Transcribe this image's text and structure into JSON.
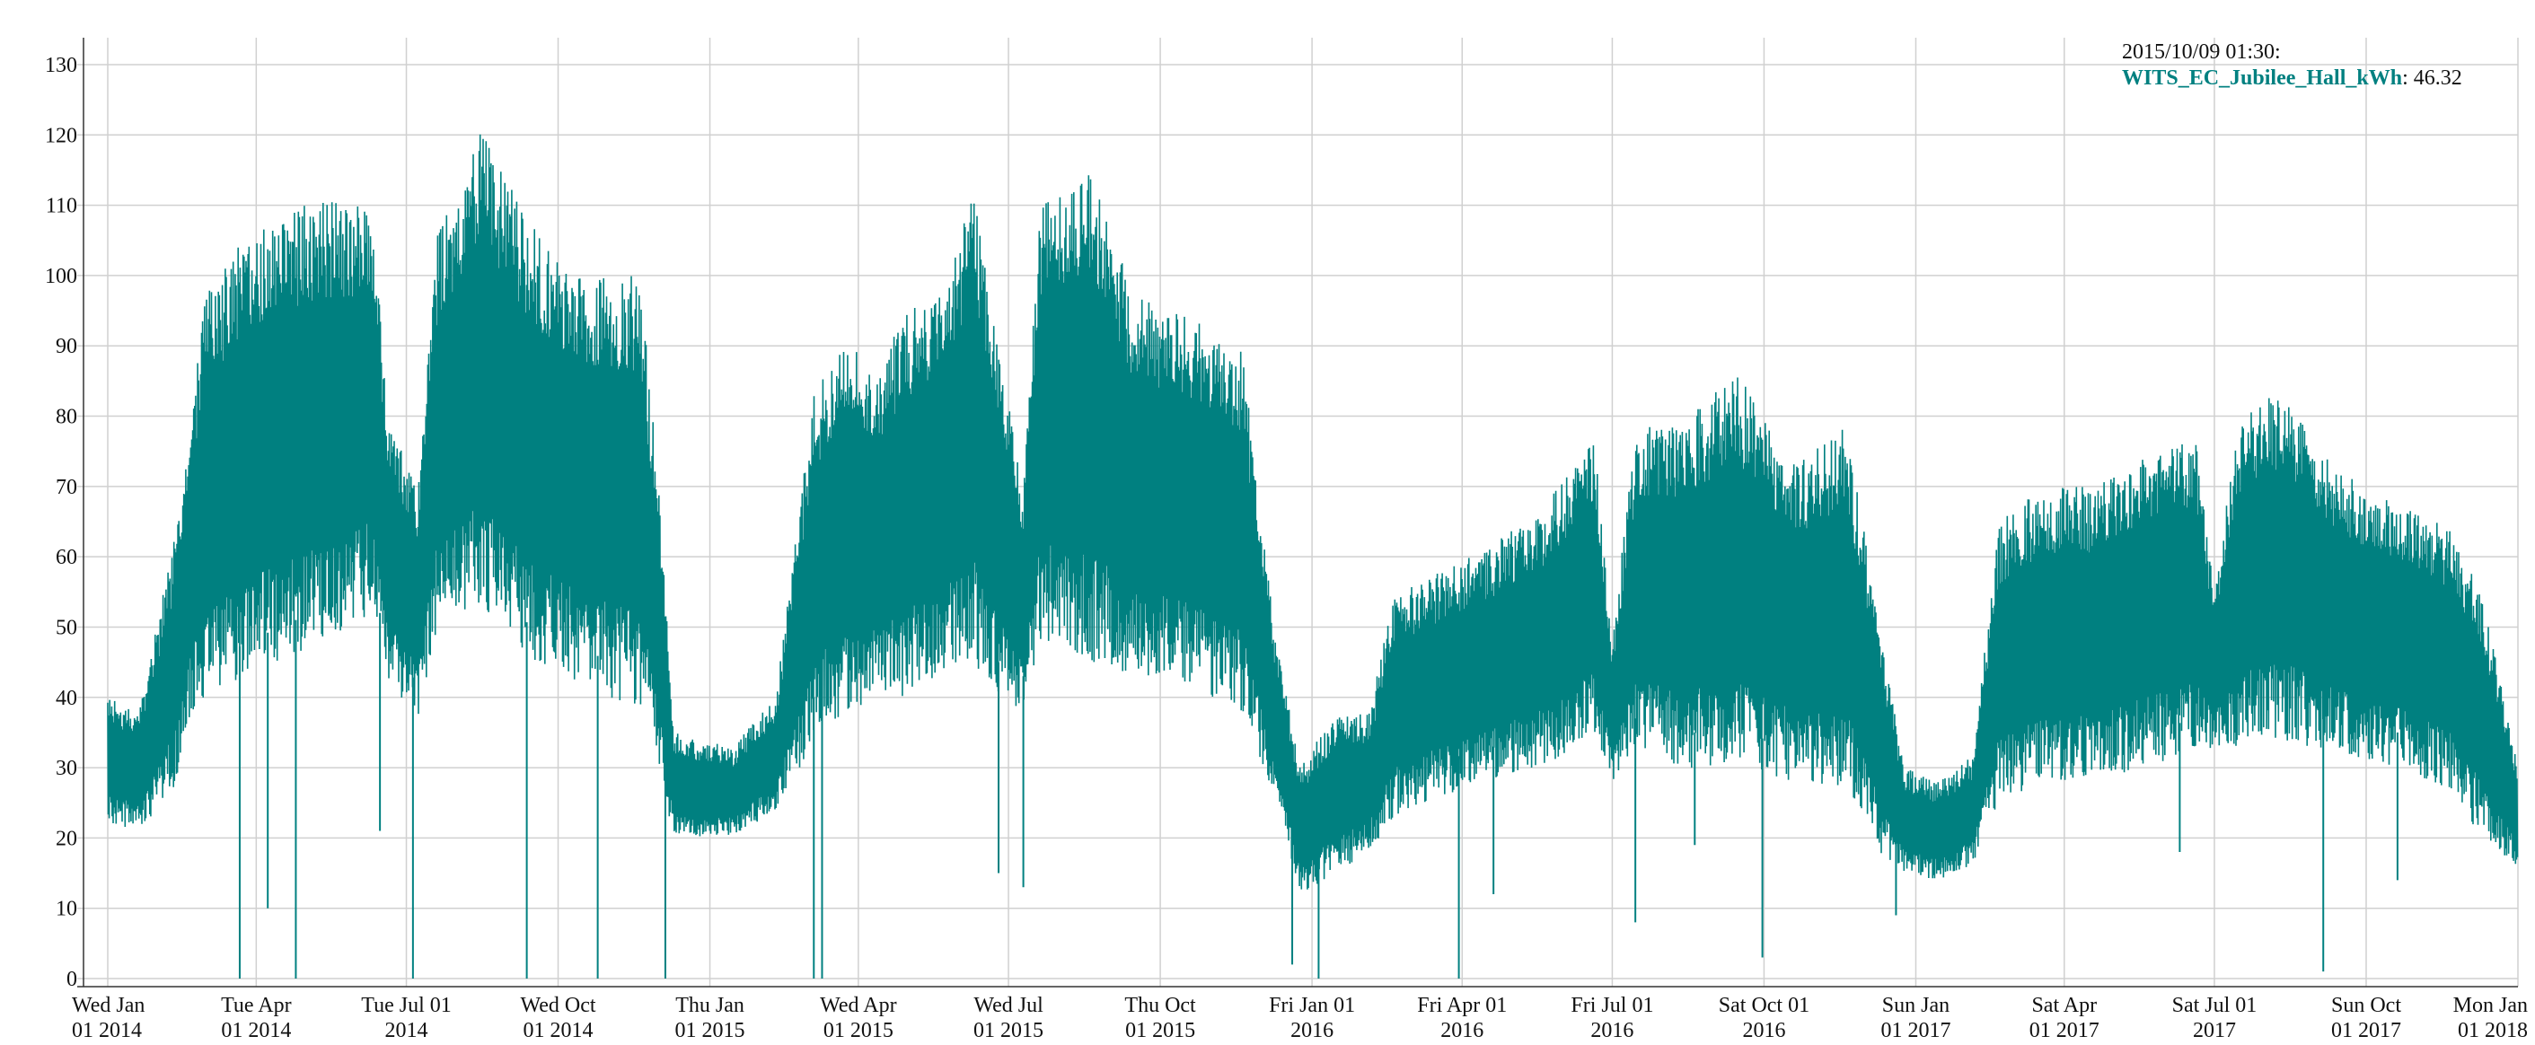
{
  "chart_data": {
    "type": "line",
    "color": "#008080",
    "ylim": [
      0,
      130
    ],
    "yticks": [
      0,
      10,
      20,
      30,
      40,
      50,
      60,
      70,
      80,
      90,
      100,
      110,
      120,
      130
    ],
    "xlim": [
      "2014-01-01",
      "2018-01-01"
    ],
    "xticks": [
      {
        "date": "2014-01-01",
        "line1": "Wed Jan",
        "line2": "01 2014"
      },
      {
        "date": "2014-04-01",
        "line1": "Tue Apr",
        "line2": "01 2014"
      },
      {
        "date": "2014-07-01",
        "line1": "Tue Jul 01",
        "line2": "2014"
      },
      {
        "date": "2014-10-01",
        "line1": "Wed Oct",
        "line2": "01 2014"
      },
      {
        "date": "2015-01-01",
        "line1": "Thu Jan",
        "line2": "01 2015"
      },
      {
        "date": "2015-04-01",
        "line1": "Wed Apr",
        "line2": "01 2015"
      },
      {
        "date": "2015-07-01",
        "line1": "Wed Jul",
        "line2": "01 2015"
      },
      {
        "date": "2015-10-01",
        "line1": "Thu Oct",
        "line2": "01 2015"
      },
      {
        "date": "2016-01-01",
        "line1": "Fri Jan 01",
        "line2": "2016"
      },
      {
        "date": "2016-04-01",
        "line1": "Fri Apr 01",
        "line2": "2016"
      },
      {
        "date": "2016-07-01",
        "line1": "Fri Jul 01",
        "line2": "2016"
      },
      {
        "date": "2016-10-01",
        "line1": "Sat Oct 01",
        "line2": "2016"
      },
      {
        "date": "2017-01-01",
        "line1": "Sun Jan",
        "line2": "01 2017"
      },
      {
        "date": "2017-04-01",
        "line1": "Sat Apr",
        "line2": "01 2017"
      },
      {
        "date": "2017-07-01",
        "line1": "Sat Jul 01",
        "line2": "2017"
      },
      {
        "date": "2017-10-01",
        "line1": "Sun Oct",
        "line2": "01 2017"
      },
      {
        "date": "2018-01-01",
        "line1": "Mon Jan",
        "line2": "01 2018"
      }
    ],
    "grid": true,
    "series": [
      {
        "name": "WITS_EC_Jubilee_Hall_kWh",
        "points": [
          {
            "x": "2014-01-01",
            "low": 22,
            "high": 40
          },
          {
            "x": "2014-01-20",
            "low": 21,
            "high": 38
          },
          {
            "x": "2014-02-10",
            "low": 27,
            "high": 62
          },
          {
            "x": "2014-02-20",
            "low": 37,
            "high": 80
          },
          {
            "x": "2014-03-01",
            "low": 40,
            "high": 97
          },
          {
            "x": "2014-03-20",
            "low": 42,
            "high": 104
          },
          {
            "x": "2014-04-15",
            "low": 45,
            "high": 109
          },
          {
            "x": "2014-05-15",
            "low": 48,
            "high": 111
          },
          {
            "x": "2014-06-10",
            "low": 52,
            "high": 110
          },
          {
            "x": "2014-06-20",
            "low": 42,
            "high": 80
          },
          {
            "x": "2014-07-08",
            "low": 37,
            "high": 70
          },
          {
            "x": "2014-07-20",
            "low": 50,
            "high": 106
          },
          {
            "x": "2014-08-15",
            "low": 52,
            "high": 121
          },
          {
            "x": "2014-09-15",
            "low": 45,
            "high": 107
          },
          {
            "x": "2014-10-15",
            "low": 42,
            "high": 100
          },
          {
            "x": "2014-11-20",
            "low": 38,
            "high": 100
          },
          {
            "x": "2014-12-01",
            "low": 30,
            "high": 70
          },
          {
            "x": "2014-12-10",
            "low": 20,
            "high": 35
          },
          {
            "x": "2015-01-15",
            "low": 20,
            "high": 33
          },
          {
            "x": "2015-02-10",
            "low": 24,
            "high": 40
          },
          {
            "x": "2015-02-25",
            "low": 30,
            "high": 68
          },
          {
            "x": "2015-03-05",
            "low": 35,
            "high": 83
          },
          {
            "x": "2015-03-25",
            "low": 37,
            "high": 92
          },
          {
            "x": "2015-04-10",
            "low": 40,
            "high": 85
          },
          {
            "x": "2015-04-30",
            "low": 40,
            "high": 95
          },
          {
            "x": "2015-05-20",
            "low": 43,
            "high": 98
          },
          {
            "x": "2015-06-10",
            "low": 45,
            "high": 112
          },
          {
            "x": "2015-06-25",
            "low": 40,
            "high": 90
          },
          {
            "x": "2015-07-10",
            "low": 38,
            "high": 70
          },
          {
            "x": "2015-07-20",
            "low": 48,
            "high": 110
          },
          {
            "x": "2015-08-20",
            "low": 45,
            "high": 116
          },
          {
            "x": "2015-09-15",
            "low": 43,
            "high": 97
          },
          {
            "x": "2015-10-15",
            "low": 42,
            "high": 95
          },
          {
            "x": "2015-11-20",
            "low": 38,
            "high": 89
          },
          {
            "x": "2015-12-10",
            "low": 25,
            "high": 48
          },
          {
            "x": "2015-12-25",
            "low": 12,
            "high": 30
          },
          {
            "x": "2016-01-15",
            "low": 15,
            "high": 38
          },
          {
            "x": "2016-02-05",
            "low": 18,
            "high": 38
          },
          {
            "x": "2016-02-20",
            "low": 23,
            "high": 55
          },
          {
            "x": "2016-03-20",
            "low": 26,
            "high": 58
          },
          {
            "x": "2016-04-20",
            "low": 28,
            "high": 62
          },
          {
            "x": "2016-05-20",
            "low": 30,
            "high": 67
          },
          {
            "x": "2016-06-20",
            "low": 35,
            "high": 77
          },
          {
            "x": "2016-07-01",
            "low": 28,
            "high": 48
          },
          {
            "x": "2016-07-15",
            "low": 32,
            "high": 78
          },
          {
            "x": "2016-08-15",
            "low": 30,
            "high": 80
          },
          {
            "x": "2016-09-15",
            "low": 30,
            "high": 86
          },
          {
            "x": "2016-10-20",
            "low": 28,
            "high": 73
          },
          {
            "x": "2016-11-20",
            "low": 27,
            "high": 79
          },
          {
            "x": "2016-12-10",
            "low": 18,
            "high": 50
          },
          {
            "x": "2016-12-25",
            "low": 15,
            "high": 30
          },
          {
            "x": "2017-01-15",
            "low": 14,
            "high": 28
          },
          {
            "x": "2017-02-05",
            "low": 16,
            "high": 32
          },
          {
            "x": "2017-02-20",
            "low": 25,
            "high": 65
          },
          {
            "x": "2017-03-20",
            "low": 28,
            "high": 70
          },
          {
            "x": "2017-04-20",
            "low": 28,
            "high": 70
          },
          {
            "x": "2017-05-20",
            "low": 30,
            "high": 75
          },
          {
            "x": "2017-06-20",
            "low": 32,
            "high": 77
          },
          {
            "x": "2017-07-01",
            "low": 33,
            "high": 55
          },
          {
            "x": "2017-07-15",
            "low": 33,
            "high": 79
          },
          {
            "x": "2017-08-10",
            "low": 34,
            "high": 84
          },
          {
            "x": "2017-09-15",
            "low": 32,
            "high": 72
          },
          {
            "x": "2017-10-20",
            "low": 30,
            "high": 68
          },
          {
            "x": "2017-11-20",
            "low": 27,
            "high": 64
          },
          {
            "x": "2017-12-10",
            "low": 20,
            "high": 55
          },
          {
            "x": "2018-01-01",
            "low": 16,
            "high": 30
          }
        ],
        "spikes_down": [
          {
            "x": "2014-03-22",
            "value": 0
          },
          {
            "x": "2014-04-08",
            "value": 10
          },
          {
            "x": "2014-04-25",
            "value": 0
          },
          {
            "x": "2014-06-15",
            "value": 21
          },
          {
            "x": "2014-07-05",
            "value": 0
          },
          {
            "x": "2014-09-12",
            "value": 0
          },
          {
            "x": "2014-10-25",
            "value": 0
          },
          {
            "x": "2014-12-05",
            "value": 0
          },
          {
            "x": "2015-03-05",
            "value": 0
          },
          {
            "x": "2015-03-10",
            "value": 0
          },
          {
            "x": "2015-06-25",
            "value": 15
          },
          {
            "x": "2015-07-10",
            "value": 13
          },
          {
            "x": "2015-12-20",
            "value": 2
          },
          {
            "x": "2016-01-05",
            "value": 0
          },
          {
            "x": "2016-03-30",
            "value": 0
          },
          {
            "x": "2016-04-20",
            "value": 12
          },
          {
            "x": "2016-07-15",
            "value": 8
          },
          {
            "x": "2016-08-20",
            "value": 19
          },
          {
            "x": "2016-09-30",
            "value": 3
          },
          {
            "x": "2016-12-20",
            "value": 9
          },
          {
            "x": "2017-06-10",
            "value": 18
          },
          {
            "x": "2017-09-05",
            "value": 1
          },
          {
            "x": "2017-10-20",
            "value": 14
          }
        ]
      }
    ]
  },
  "tooltip": {
    "timestamp": "2015/10/09 01:30:",
    "series_name": "WITS_EC_Jubilee_Hall_kWh",
    "value_text": ": 46.32"
  }
}
